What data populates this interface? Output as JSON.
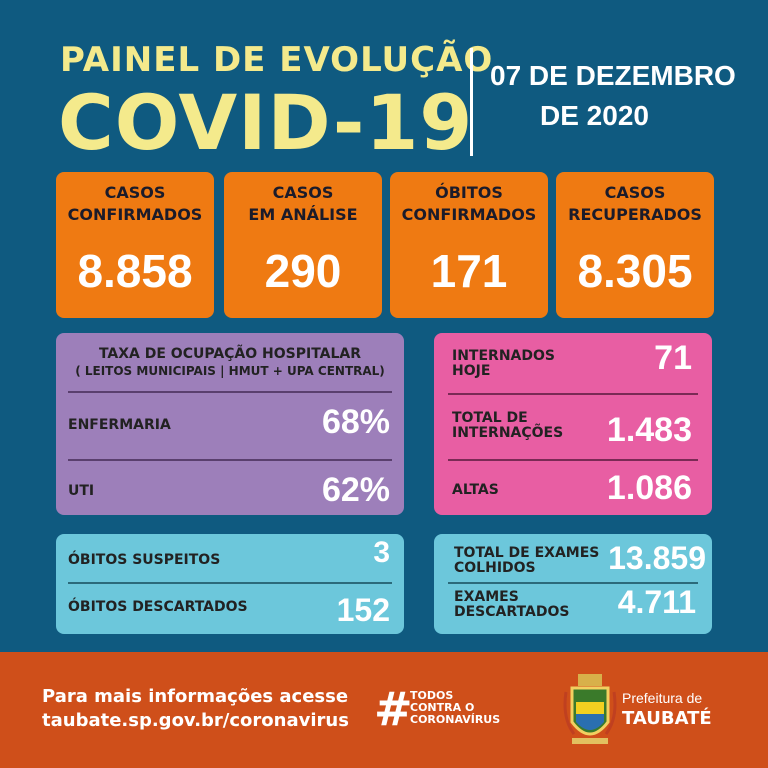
{
  "header": {
    "subtitle": "PAINEL DE EVOLUÇÃO",
    "title": "COVID-19",
    "date_line1": "07 DE DEZEMBRO",
    "date_line2": "DE 2020"
  },
  "stats": [
    {
      "label1": "CASOS",
      "label2": "CONFIRMADOS",
      "value": "8.858"
    },
    {
      "label1": "CASOS",
      "label2": "EM ANÁLISE",
      "value": "290"
    },
    {
      "label1": "ÓBITOS",
      "label2": "CONFIRMADOS",
      "value": "171"
    },
    {
      "label1": "CASOS",
      "label2": "RECUPERADOS",
      "value": "8.305"
    }
  ],
  "occupancy": {
    "title": "TAXA DE OCUPAÇÃO HOSPITALAR",
    "subtitle": "( LEITOS MUNICIPAIS | HMUT + UPA CENTRAL)",
    "rows": [
      {
        "label": "ENFERMARIA",
        "value": "68%"
      },
      {
        "label": "UTI",
        "value": "62%"
      }
    ]
  },
  "hospital": [
    {
      "label1": "INTERNADOS",
      "label2": "HOJE",
      "value": "71"
    },
    {
      "label1": "TOTAL DE",
      "label2": "INTERNAÇÕES",
      "value": "1.483"
    },
    {
      "label1": "ALTAS",
      "label2": "",
      "value": "1.086"
    }
  ],
  "deaths": [
    {
      "label": "ÓBITOS SUSPEITOS",
      "value": "3"
    },
    {
      "label": "ÓBITOS DESCARTADOS",
      "value": "152"
    }
  ],
  "exams": [
    {
      "label1": "TOTAL DE EXAMES",
      "label2": "COLHIDOS",
      "value": "13.859"
    },
    {
      "label1": "EXAMES",
      "label2": "DESCARTADOS",
      "value": "4.711"
    }
  ],
  "footer": {
    "info1": "Para mais informações acesse",
    "info2": "taubate.sp.gov.br/coronavirus",
    "hashtag": "#",
    "tag1": "TODOS",
    "tag2": "CONTRA O",
    "tag3": "CORONAVÍRUS",
    "pref1": "Prefeitura de",
    "pref2": "TAUBATÉ"
  },
  "colors": {
    "background": "#0f5a80",
    "orange": "#ef7a12",
    "purple": "#9d7fba",
    "pink": "#e85ea3",
    "cyan": "#6cc7db",
    "footer": "#cf4f1a",
    "title": "#f4ea8c"
  }
}
